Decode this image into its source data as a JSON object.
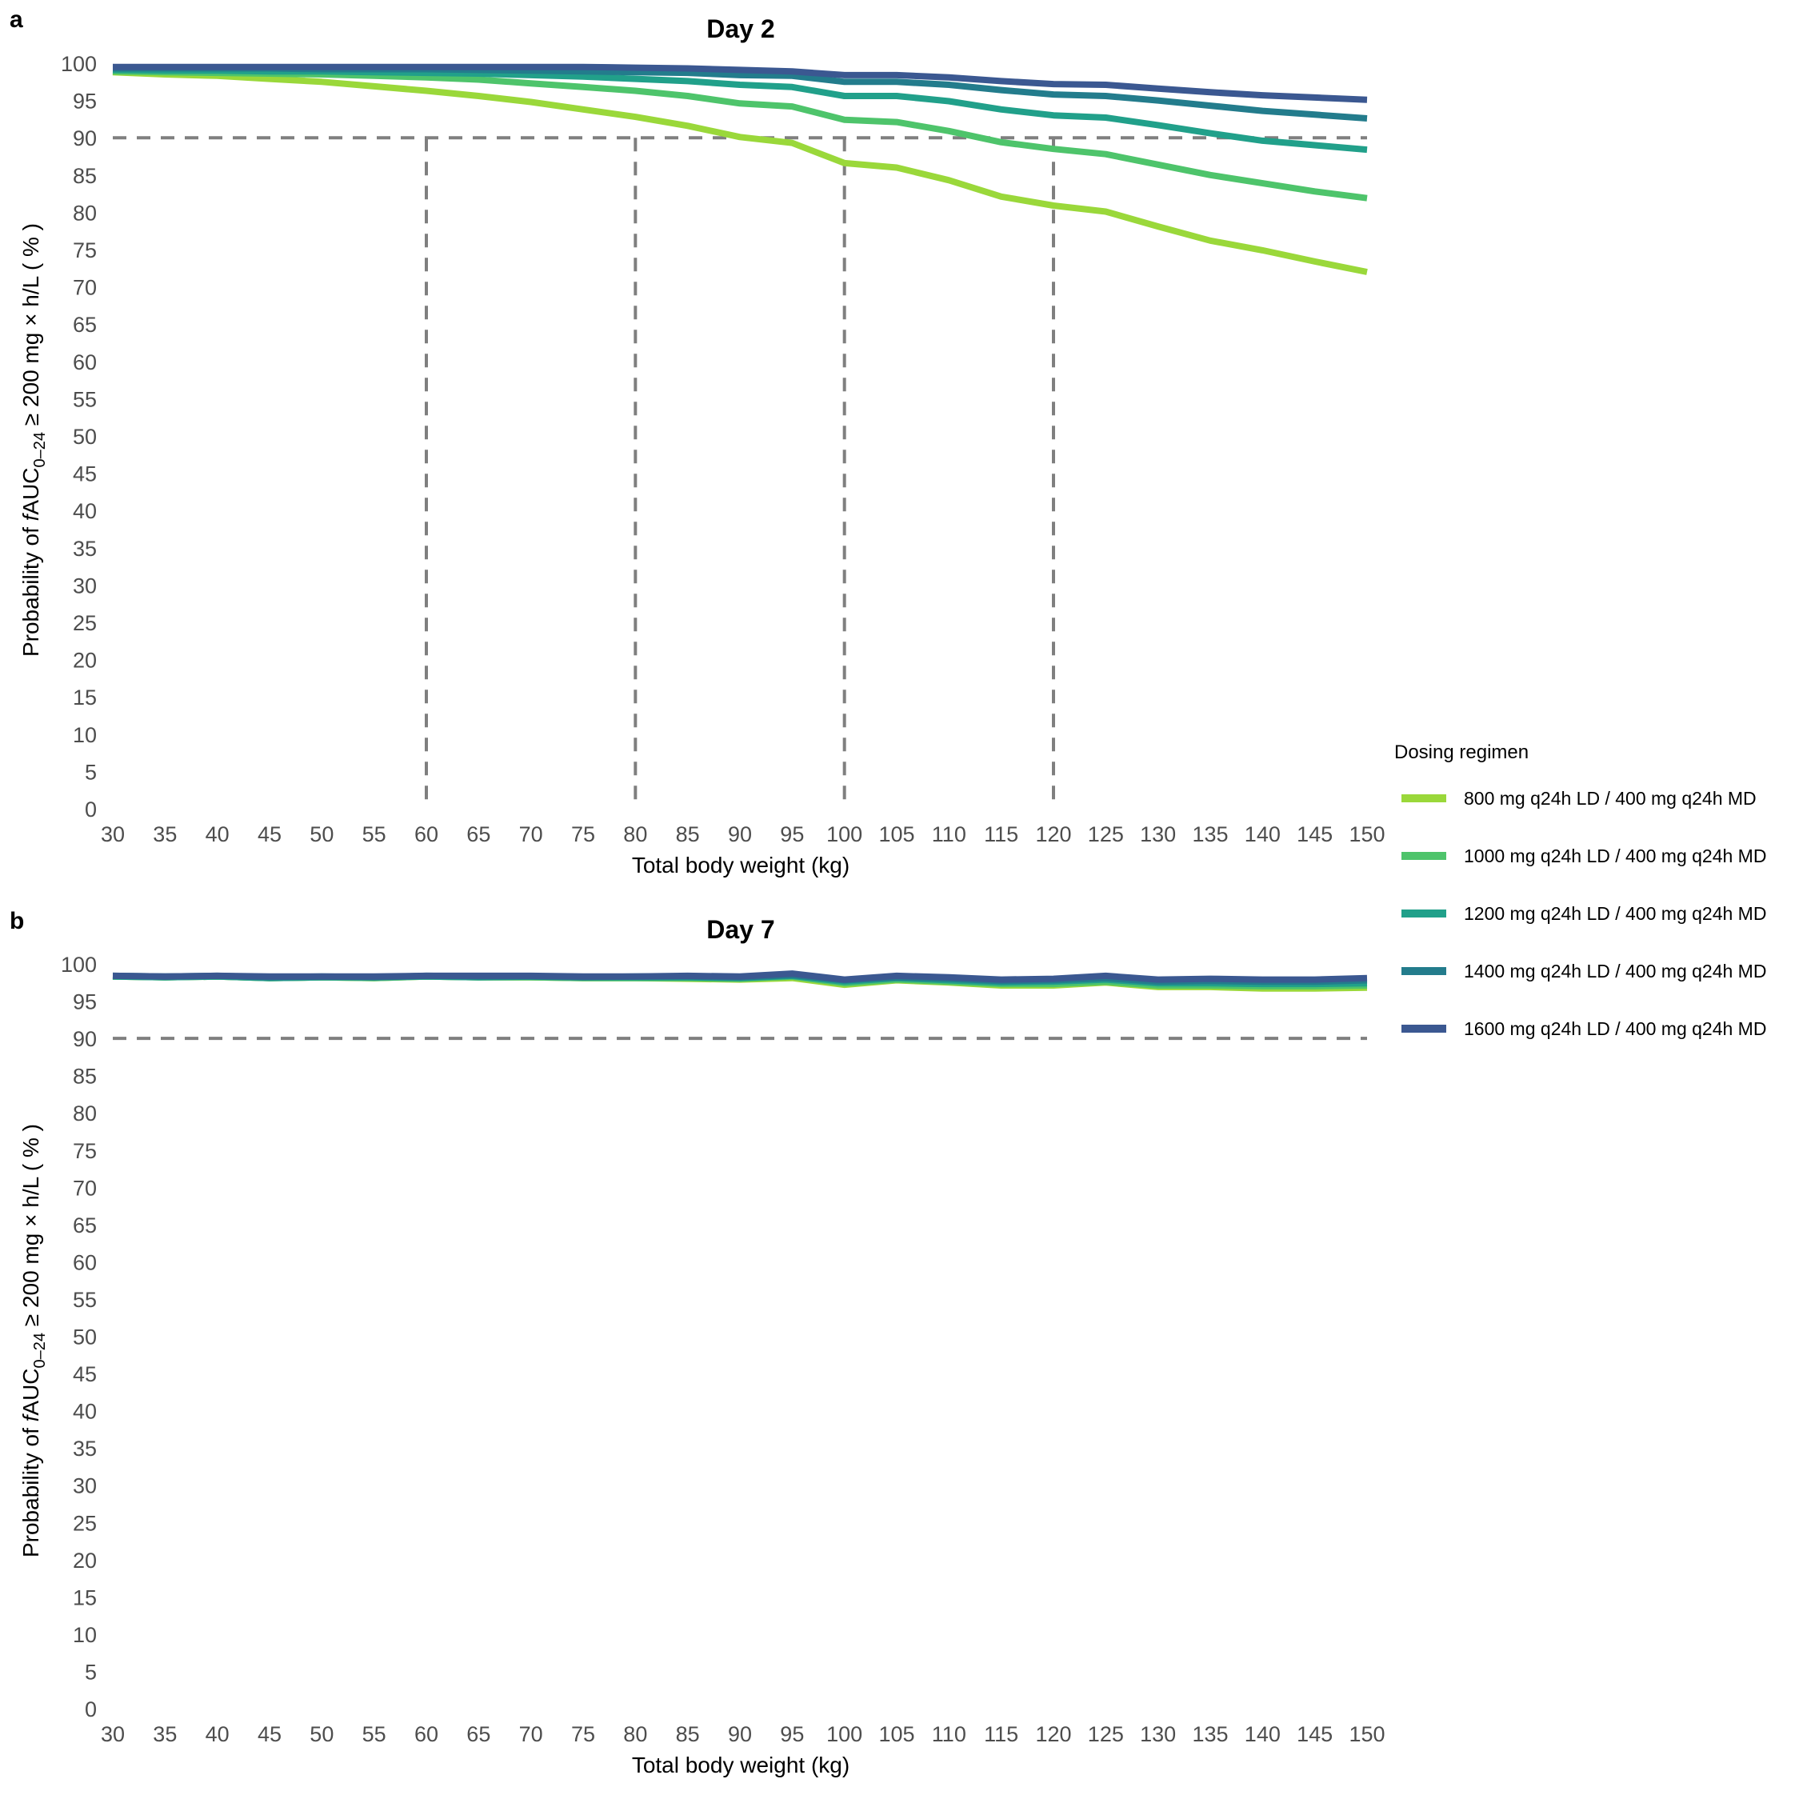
{
  "chart_data": [
    {
      "type": "line",
      "panel_label": "a",
      "title": "Day 2",
      "xlabel": "Total body weight (kg)",
      "ylabel_parts": [
        "Probability  of  ",
        "f",
        "AUC",
        "0–24",
        "  ≥ 200 mg × h/L  ( % )"
      ],
      "x": [
        30,
        35,
        40,
        45,
        50,
        55,
        60,
        65,
        70,
        75,
        80,
        85,
        90,
        95,
        100,
        105,
        110,
        115,
        120,
        125,
        130,
        135,
        140,
        145,
        150
      ],
      "xlim": [
        30,
        150
      ],
      "ylim": [
        0,
        100
      ],
      "y_ticks": [
        0,
        5,
        10,
        15,
        20,
        25,
        30,
        35,
        40,
        45,
        50,
        55,
        60,
        65,
        70,
        75,
        80,
        85,
        90,
        95,
        100
      ],
      "grid": false,
      "reference_lines": {
        "y": 90,
        "x": [
          60,
          80,
          100,
          120
        ]
      },
      "series": [
        {
          "name": "800  mg q24h LD / 400 mg q24h MD",
          "color": "#9ad83a",
          "values": [
            98.8,
            98.5,
            98.3,
            97.9,
            97.5,
            96.9,
            96.3,
            95.6,
            94.8,
            93.8,
            92.8,
            91.6,
            90.1,
            89.3,
            86.6,
            86.0,
            84.3,
            82.1,
            80.9,
            80.1,
            78.1,
            76.2,
            74.9,
            73.4,
            72.0
          ]
        },
        {
          "name": "1000 mg q24h LD / 400 mg q24h MD",
          "color": "#4ec46b",
          "values": [
            98.9,
            98.8,
            98.7,
            98.6,
            98.5,
            98.3,
            98.1,
            97.8,
            97.3,
            96.8,
            96.3,
            95.6,
            94.6,
            94.2,
            92.4,
            92.1,
            90.9,
            89.4,
            88.5,
            87.8,
            86.4,
            85.0,
            83.9,
            82.8,
            81.9
          ]
        },
        {
          "name": "1200 mg q24h LD / 400 mg q24h MD",
          "color": "#21a08a",
          "values": [
            99.1,
            99.0,
            99.0,
            98.9,
            98.9,
            98.8,
            98.7,
            98.6,
            98.4,
            98.2,
            97.9,
            97.6,
            97.1,
            96.8,
            95.6,
            95.6,
            94.9,
            93.8,
            93.0,
            92.7,
            91.7,
            90.6,
            89.6,
            89.0,
            88.4
          ]
        },
        {
          "name": "1400 mg q24h LD / 400 mg q24h MD",
          "color": "#237c8c",
          "values": [
            99.3,
            99.3,
            99.3,
            99.3,
            99.2,
            99.2,
            99.2,
            99.1,
            99.0,
            98.9,
            98.8,
            98.7,
            98.4,
            98.3,
            97.5,
            97.5,
            97.1,
            96.4,
            95.8,
            95.6,
            95.0,
            94.3,
            93.6,
            93.1,
            92.6
          ]
        },
        {
          "name": "1600 mg q24h LD / 400 mg q24h MD",
          "color": "#3b5891",
          "values": [
            99.5,
            99.5,
            99.5,
            99.5,
            99.5,
            99.5,
            99.5,
            99.5,
            99.5,
            99.5,
            99.4,
            99.3,
            99.1,
            98.9,
            98.4,
            98.4,
            98.1,
            97.6,
            97.2,
            97.1,
            96.6,
            96.1,
            95.7,
            95.4,
            95.1
          ]
        }
      ]
    },
    {
      "type": "line",
      "panel_label": "b",
      "title": "Day 7",
      "xlabel": "Total body weight (kg)",
      "ylabel_parts": [
        "Probability  of  ",
        "f",
        "AUC",
        "0–24",
        "  ≥ 200 mg × h/L  ( % )"
      ],
      "x": [
        30,
        35,
        40,
        45,
        50,
        55,
        60,
        65,
        70,
        75,
        80,
        85,
        90,
        95,
        100,
        105,
        110,
        115,
        120,
        125,
        130,
        135,
        140,
        145,
        150
      ],
      "xlim": [
        30,
        150
      ],
      "ylim": [
        0,
        100
      ],
      "y_ticks": [
        0,
        5,
        10,
        15,
        20,
        25,
        30,
        35,
        40,
        45,
        50,
        55,
        60,
        65,
        70,
        75,
        80,
        85,
        90,
        95,
        100
      ],
      "grid": false,
      "reference_lines": {
        "y": 90,
        "x": []
      },
      "series": [
        {
          "name": "800  mg q24h LD / 400 mg q24h MD",
          "color": "#9ad83a",
          "values": [
            98.3,
            98.2,
            98.3,
            98.1,
            98.2,
            98.1,
            98.3,
            98.2,
            98.2,
            98.1,
            98.1,
            98.0,
            97.9,
            98.1,
            97.2,
            97.8,
            97.5,
            97.1,
            97.1,
            97.5,
            96.9,
            96.9,
            96.7,
            96.7,
            96.8
          ]
        },
        {
          "name": "1000 mg q24h LD / 400 mg q24h MD",
          "color": "#4ec46b",
          "values": [
            98.3,
            98.2,
            98.3,
            98.1,
            98.2,
            98.1,
            98.3,
            98.2,
            98.2,
            98.1,
            98.1,
            98.1,
            98.0,
            98.3,
            97.4,
            97.9,
            97.6,
            97.3,
            97.3,
            97.6,
            97.1,
            97.1,
            97.0,
            97.0,
            97.1
          ]
        },
        {
          "name": "1200 mg q24h LD / 400 mg q24h MD",
          "color": "#21a08a",
          "values": [
            98.3,
            98.2,
            98.3,
            98.1,
            98.2,
            98.2,
            98.3,
            98.2,
            98.3,
            98.2,
            98.2,
            98.2,
            98.1,
            98.4,
            97.6,
            98.1,
            97.8,
            97.5,
            97.6,
            97.9,
            97.4,
            97.4,
            97.3,
            97.3,
            97.4
          ]
        },
        {
          "name": "1400 mg q24h LD / 400 mg q24h MD",
          "color": "#237c8c",
          "values": [
            98.4,
            98.3,
            98.4,
            98.2,
            98.3,
            98.2,
            98.4,
            98.3,
            98.3,
            98.2,
            98.3,
            98.3,
            98.2,
            98.5,
            97.8,
            98.2,
            98.0,
            97.7,
            97.8,
            98.1,
            97.6,
            97.7,
            97.6,
            97.6,
            97.8
          ]
        },
        {
          "name": "1600 mg q24h LD / 400 mg q24h MD",
          "color": "#3b5891",
          "values": [
            98.4,
            98.3,
            98.4,
            98.3,
            98.3,
            98.3,
            98.4,
            98.4,
            98.4,
            98.3,
            98.3,
            98.4,
            98.3,
            98.7,
            97.9,
            98.4,
            98.2,
            97.9,
            98.0,
            98.4,
            97.9,
            98.0,
            97.9,
            97.9,
            98.1
          ]
        }
      ]
    }
  ],
  "legend": {
    "title": "Dosing regimen",
    "placement": "right",
    "items": [
      {
        "label": "800  mg q24h LD / 400 mg q24h MD",
        "color": "#9ad83a"
      },
      {
        "label": "1000 mg q24h LD / 400 mg q24h MD",
        "color": "#4ec46b"
      },
      {
        "label": "1200 mg q24h LD / 400 mg q24h MD",
        "color": "#21a08a"
      },
      {
        "label": "1400 mg q24h LD / 400 mg q24h MD",
        "color": "#237c8c"
      },
      {
        "label": "1600 mg q24h LD / 400 mg q24h MD",
        "color": "#3b5891"
      }
    ]
  },
  "reference_line_color": "#7f7f7f"
}
